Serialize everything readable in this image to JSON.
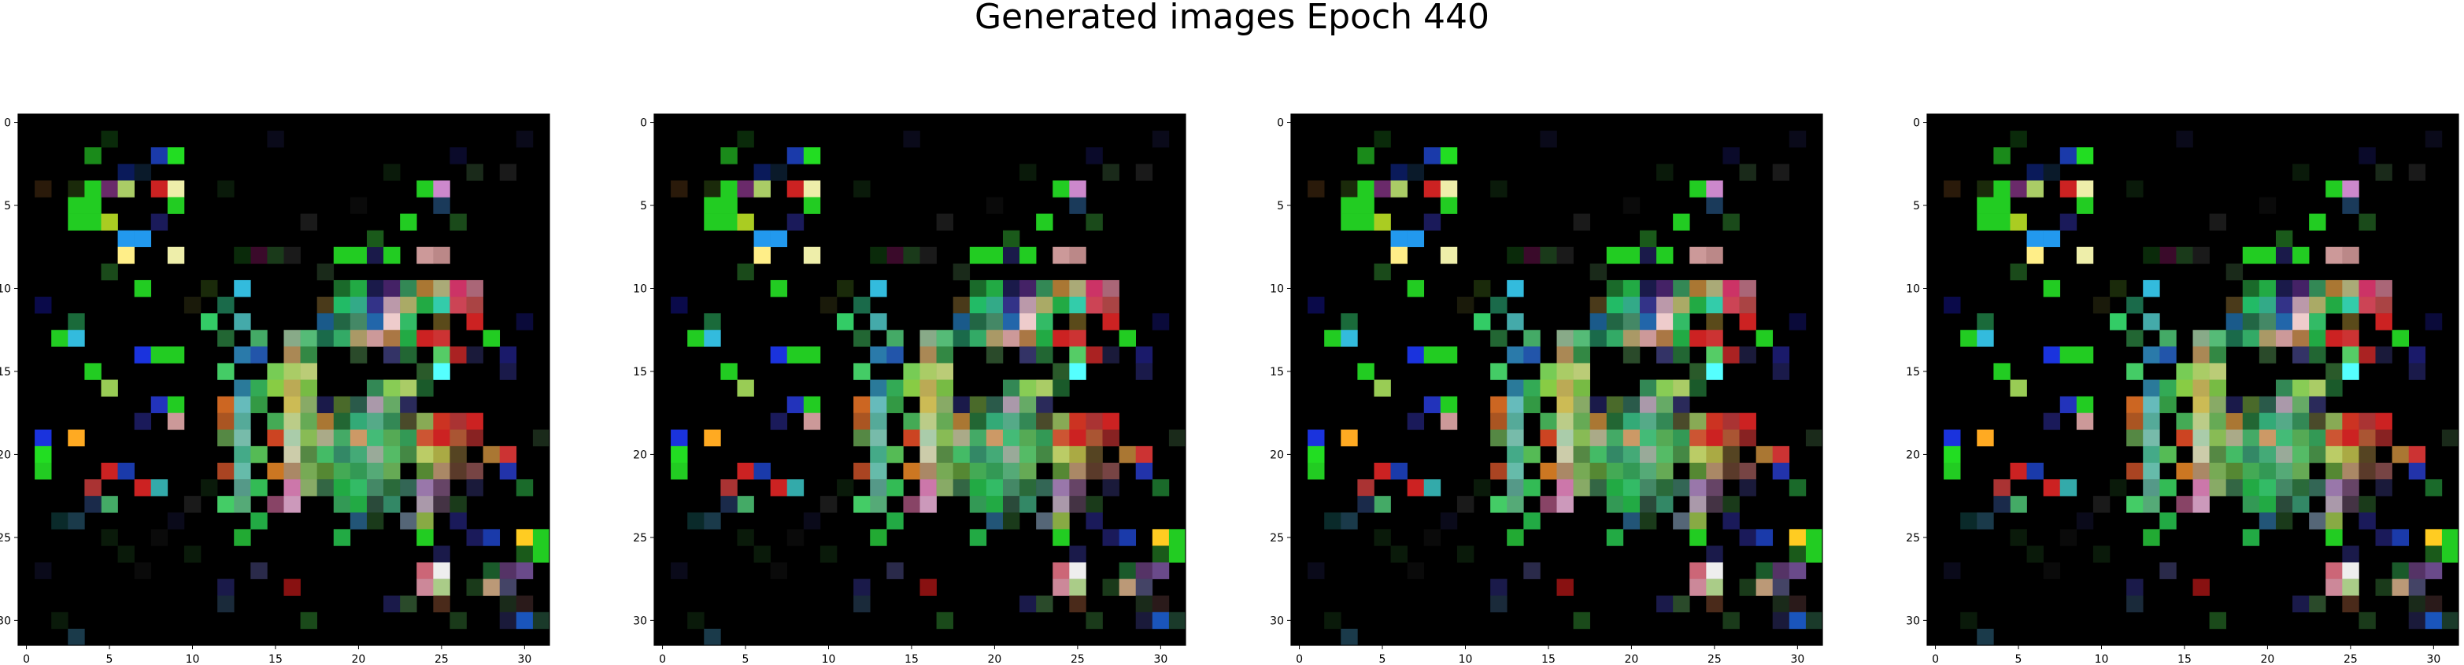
{
  "title": "Generated images Epoch 440",
  "chart_data": [
    {
      "type": "heatmap",
      "x_ticks": [
        0,
        5,
        10,
        15,
        20,
        25,
        30
      ],
      "y_ticks": [
        0,
        5,
        10,
        15,
        20,
        25,
        30
      ],
      "xlim": [
        -0.5,
        31.5
      ],
      "ylim": [
        31.5,
        -0.5
      ],
      "grid": false
    },
    {
      "type": "heatmap",
      "x_ticks": [
        0,
        5,
        10,
        15,
        20,
        25,
        30
      ],
      "y_ticks": [
        0,
        5,
        10,
        15,
        20,
        25,
        30
      ],
      "xlim": [
        -0.5,
        31.5
      ],
      "ylim": [
        31.5,
        -0.5
      ],
      "grid": false
    },
    {
      "type": "heatmap",
      "x_ticks": [
        0,
        5,
        10,
        15,
        20,
        25,
        30
      ],
      "y_ticks": [
        0,
        5,
        10,
        15,
        20,
        25,
        30
      ],
      "xlim": [
        -0.5,
        31.5
      ],
      "ylim": [
        31.5,
        -0.5
      ],
      "grid": false
    },
    {
      "type": "heatmap",
      "x_ticks": [
        0,
        5,
        10,
        15,
        20,
        25,
        30
      ],
      "y_ticks": [
        0,
        5,
        10,
        15,
        20,
        25,
        30
      ],
      "xlim": [
        -0.5,
        31.5
      ],
      "ylim": [
        31.5,
        -0.5
      ],
      "grid": false
    }
  ],
  "image_pixels": {
    "background": "#000000",
    "cells": [
      [
        5,
        1,
        "#0a2a0a"
      ],
      [
        4,
        2,
        "#1a8a1a"
      ],
      [
        6,
        3,
        "#0a1a5a"
      ],
      [
        8,
        2,
        "#1a3aaa"
      ],
      [
        9,
        2,
        "#22dd22"
      ],
      [
        7,
        3,
        "#0a1a2a"
      ],
      [
        1,
        4,
        "#2a1a0a"
      ],
      [
        3,
        4,
        "#1a2a0a"
      ],
      [
        4,
        4,
        "#22cc22"
      ],
      [
        5,
        4,
        "#6a2a6a"
      ],
      [
        6,
        4,
        "#aacc66"
      ],
      [
        8,
        4,
        "#cc2222"
      ],
      [
        9,
        4,
        "#eeeeaa"
      ],
      [
        3,
        5,
        "#22cc22"
      ],
      [
        4,
        5,
        "#22cc22"
      ],
      [
        9,
        5,
        "#22cc22"
      ],
      [
        3,
        6,
        "#22cc22"
      ],
      [
        4,
        6,
        "#22cc22"
      ],
      [
        5,
        6,
        "#aacc22"
      ],
      [
        8,
        6,
        "#1a1a5a"
      ],
      [
        6,
        7,
        "#2299ee"
      ],
      [
        7,
        7,
        "#2299ee"
      ],
      [
        6,
        8,
        "#ffee88"
      ],
      [
        9,
        8,
        "#eeeeaa"
      ],
      [
        5,
        9,
        "#1a4a1a"
      ],
      [
        7,
        10,
        "#22cc22"
      ],
      [
        1,
        11,
        "#0a0a4a"
      ],
      [
        3,
        12,
        "#1a6a3a"
      ],
      [
        2,
        13,
        "#22cc22"
      ],
      [
        3,
        13,
        "#33bbdd"
      ],
      [
        7,
        14,
        "#1a33dd"
      ],
      [
        8,
        14,
        "#22cc22"
      ],
      [
        9,
        14,
        "#22cc22"
      ],
      [
        4,
        15,
        "#22cc22"
      ],
      [
        5,
        16,
        "#99cc55"
      ],
      [
        8,
        17,
        "#2233bb"
      ],
      [
        9,
        17,
        "#22cc22"
      ],
      [
        7,
        18,
        "#1a1a5a"
      ],
      [
        9,
        18,
        "#cc9999"
      ],
      [
        3,
        19,
        "#ffaa22"
      ],
      [
        1,
        19,
        "#1a33dd"
      ],
      [
        1,
        20,
        "#22dd22"
      ],
      [
        1,
        21,
        "#22cc22"
      ],
      [
        5,
        21,
        "#cc2222"
      ],
      [
        6,
        21,
        "#1a3aaa"
      ],
      [
        4,
        22,
        "#aa3333"
      ],
      [
        7,
        22,
        "#cc2222"
      ],
      [
        8,
        22,
        "#33aaaa"
      ],
      [
        5,
        23,
        "#44aa66"
      ],
      [
        4,
        23,
        "#1a2a4a"
      ],
      [
        2,
        24,
        "#0a2a2a"
      ],
      [
        3,
        24,
        "#1a3a4a"
      ],
      [
        13,
        10,
        "#33bbdd"
      ],
      [
        12,
        11,
        "#1a6a4a"
      ],
      [
        11,
        12,
        "#33cc66"
      ],
      [
        13,
        12,
        "#44aaaa"
      ],
      [
        14,
        13,
        "#44aa66"
      ],
      [
        12,
        13,
        "#226633"
      ],
      [
        16,
        13,
        "#88aa88"
      ],
      [
        17,
        13,
        "#55bb77"
      ],
      [
        13,
        14,
        "#2a7aaa"
      ],
      [
        14,
        14,
        "#2255aa"
      ],
      [
        16,
        14,
        "#aa8855"
      ],
      [
        17,
        14,
        "#338844"
      ],
      [
        12,
        15,
        "#44cc66"
      ],
      [
        15,
        15,
        "#77cc55"
      ],
      [
        16,
        15,
        "#aacc66"
      ],
      [
        17,
        15,
        "#bbcc77"
      ],
      [
        13,
        16,
        "#2a7a9a"
      ],
      [
        14,
        16,
        "#33aa55"
      ],
      [
        15,
        16,
        "#88cc44"
      ],
      [
        16,
        16,
        "#bbaa55"
      ],
      [
        17,
        16,
        "#77bb44"
      ],
      [
        12,
        17,
        "#cc6622"
      ],
      [
        13,
        17,
        "#66bbbb"
      ],
      [
        14,
        17,
        "#339944"
      ],
      [
        16,
        17,
        "#ccbb55"
      ],
      [
        17,
        17,
        "#88aa66"
      ],
      [
        12,
        18,
        "#aa5522"
      ],
      [
        13,
        18,
        "#55aa99"
      ],
      [
        15,
        18,
        "#44aa55"
      ],
      [
        16,
        18,
        "#bbcc88"
      ],
      [
        17,
        18,
        "#66aa55"
      ],
      [
        18,
        18,
        "#aa7733"
      ],
      [
        12,
        19,
        "#558844"
      ],
      [
        13,
        19,
        "#77bbaa"
      ],
      [
        15,
        19,
        "#cc4422"
      ],
      [
        16,
        19,
        "#aaccaa"
      ],
      [
        17,
        19,
        "#88bb55"
      ],
      [
        13,
        20,
        "#44aa88"
      ],
      [
        14,
        20,
        "#55bb55"
      ],
      [
        16,
        20,
        "#ccccaa"
      ],
      [
        17,
        20,
        "#558844"
      ],
      [
        12,
        21,
        "#aa4422"
      ],
      [
        13,
        21,
        "#66bbaa"
      ],
      [
        15,
        21,
        "#cc7722"
      ],
      [
        16,
        21,
        "#aa8866"
      ],
      [
        17,
        21,
        "#77aa55"
      ],
      [
        13,
        22,
        "#559988"
      ],
      [
        14,
        22,
        "#33bb55"
      ],
      [
        16,
        22,
        "#cc77aa"
      ],
      [
        17,
        22,
        "#88aa66"
      ],
      [
        12,
        23,
        "#44cc66"
      ],
      [
        13,
        23,
        "#55aa77"
      ],
      [
        15,
        23,
        "#884466"
      ],
      [
        16,
        23,
        "#cc99bb"
      ],
      [
        14,
        24,
        "#22aa44"
      ],
      [
        13,
        25,
        "#22aa33"
      ],
      [
        18,
        9,
        "#1a2a1a"
      ],
      [
        19,
        8,
        "#22cc22"
      ],
      [
        20,
        8,
        "#22cc22"
      ],
      [
        21,
        8,
        "#1a1a4a"
      ],
      [
        22,
        8,
        "#22cc22"
      ],
      [
        24,
        8,
        "#cc9999"
      ],
      [
        25,
        8,
        "#bb8888"
      ],
      [
        21,
        7,
        "#1a5a1a"
      ],
      [
        23,
        6,
        "#22cc22"
      ],
      [
        25,
        5,
        "#1a3a5a"
      ],
      [
        26,
        6,
        "#1a4a1a"
      ],
      [
        24,
        4,
        "#22cc22"
      ],
      [
        25,
        4,
        "#cc88cc"
      ],
      [
        19,
        10,
        "#1a6a2a"
      ],
      [
        20,
        10,
        "#22aa44"
      ],
      [
        21,
        10,
        "#1a1a4a"
      ],
      [
        22,
        10,
        "#442266"
      ],
      [
        23,
        10,
        "#338855"
      ],
      [
        24,
        10,
        "#aa7733"
      ],
      [
        25,
        10,
        "#aaaa77"
      ],
      [
        26,
        10,
        "#cc3366"
      ],
      [
        27,
        10,
        "#aa6677"
      ],
      [
        18,
        11,
        "#4a3a1a"
      ],
      [
        19,
        11,
        "#22bb66"
      ],
      [
        20,
        11,
        "#33aa88"
      ],
      [
        21,
        11,
        "#333388"
      ],
      [
        22,
        11,
        "#bb99aa"
      ],
      [
        23,
        11,
        "#aaaa66"
      ],
      [
        24,
        11,
        "#22aa44"
      ],
      [
        25,
        11,
        "#33ccaa"
      ],
      [
        26,
        11,
        "#cc4455"
      ],
      [
        27,
        11,
        "#aa4444"
      ],
      [
        18,
        12,
        "#1a5a8a"
      ],
      [
        19,
        12,
        "#226644"
      ],
      [
        20,
        12,
        "#448866"
      ],
      [
        21,
        12,
        "#2266aa"
      ],
      [
        22,
        12,
        "#eecccc"
      ],
      [
        23,
        12,
        "#33bb66"
      ],
      [
        25,
        12,
        "#5a4a1a"
      ],
      [
        27,
        12,
        "#cc2222"
      ],
      [
        18,
        13,
        "#1a6a4a"
      ],
      [
        19,
        13,
        "#33aa66"
      ],
      [
        20,
        13,
        "#aa9966"
      ],
      [
        21,
        13,
        "#cc9999"
      ],
      [
        22,
        13,
        "#aa7744"
      ],
      [
        23,
        13,
        "#22aa44"
      ],
      [
        24,
        13,
        "#cc2222"
      ],
      [
        25,
        13,
        "#cc3333"
      ],
      [
        28,
        13,
        "#22cc22"
      ],
      [
        20,
        14,
        "#2a4a2a"
      ],
      [
        22,
        14,
        "#333366"
      ],
      [
        23,
        14,
        "#226633"
      ],
      [
        25,
        14,
        "#55cc66"
      ],
      [
        26,
        14,
        "#aa2222"
      ],
      [
        24,
        15,
        "#2a5a2a"
      ],
      [
        25,
        15,
        "#55ffff"
      ],
      [
        21,
        16,
        "#338855"
      ],
      [
        22,
        16,
        "#88cc55"
      ],
      [
        23,
        16,
        "#aacc66"
      ],
      [
        24,
        16,
        "#1a5a2a"
      ],
      [
        18,
        17,
        "#1a1a4a"
      ],
      [
        19,
        17,
        "#4a6a2a"
      ],
      [
        20,
        17,
        "#2a5a4a"
      ],
      [
        21,
        17,
        "#aa99aa"
      ],
      [
        22,
        17,
        "#66aa66"
      ],
      [
        23,
        17,
        "#2a2a5a"
      ],
      [
        19,
        18,
        "#226633"
      ],
      [
        20,
        18,
        "#33aa77"
      ],
      [
        21,
        18,
        "#55aa88"
      ],
      [
        22,
        18,
        "#338855"
      ],
      [
        23,
        18,
        "#4a4a2a"
      ],
      [
        24,
        18,
        "#88aa55"
      ],
      [
        25,
        18,
        "#cc3322"
      ],
      [
        26,
        18,
        "#aa3333"
      ],
      [
        27,
        18,
        "#cc2222"
      ],
      [
        18,
        19,
        "#aaaa88"
      ],
      [
        19,
        19,
        "#44aa66"
      ],
      [
        20,
        19,
        "#cc9966"
      ],
      [
        21,
        19,
        "#44bb77"
      ],
      [
        22,
        19,
        "#55aa55"
      ],
      [
        23,
        19,
        "#339955"
      ],
      [
        24,
        19,
        "#cc5533"
      ],
      [
        25,
        19,
        "#cc2222"
      ],
      [
        26,
        19,
        "#aa5533"
      ],
      [
        27,
        19,
        "#882222"
      ],
      [
        18,
        20,
        "#44bb66"
      ],
      [
        19,
        20,
        "#338866"
      ],
      [
        20,
        20,
        "#44aa77"
      ],
      [
        21,
        20,
        "#99aa99"
      ],
      [
        22,
        20,
        "#55bb66"
      ],
      [
        23,
        20,
        "#448844"
      ],
      [
        24,
        20,
        "#bbcc66"
      ],
      [
        25,
        20,
        "#aaaa44"
      ],
      [
        26,
        20,
        "#554422"
      ],
      [
        28,
        20,
        "#aa7733"
      ],
      [
        29,
        20,
        "#cc3333"
      ],
      [
        18,
        21,
        "#558833"
      ],
      [
        19,
        21,
        "#44aa55"
      ],
      [
        20,
        21,
        "#339955"
      ],
      [
        21,
        21,
        "#55aa77"
      ],
      [
        22,
        21,
        "#66aa55"
      ],
      [
        24,
        21,
        "#558833"
      ],
      [
        25,
        21,
        "#aa8866"
      ],
      [
        26,
        21,
        "#5a3a2a"
      ],
      [
        27,
        21,
        "#774444"
      ],
      [
        29,
        21,
        "#2233aa"
      ],
      [
        18,
        22,
        "#336644"
      ],
      [
        19,
        22,
        "#22aa44"
      ],
      [
        20,
        22,
        "#33bb66"
      ],
      [
        21,
        22,
        "#448866"
      ],
      [
        22,
        22,
        "#2a6a3a"
      ],
      [
        23,
        22,
        "#336655"
      ],
      [
        24,
        22,
        "#9977aa"
      ],
      [
        25,
        22,
        "#664466"
      ],
      [
        27,
        22,
        "#1a1a3a"
      ],
      [
        30,
        22,
        "#1a6a2a"
      ],
      [
        19,
        23,
        "#339955"
      ],
      [
        20,
        23,
        "#22aa44"
      ],
      [
        21,
        23,
        "#2a4a3a"
      ],
      [
        22,
        23,
        "#338866"
      ],
      [
        24,
        23,
        "#aa99aa"
      ],
      [
        25,
        23,
        "#443344"
      ],
      [
        26,
        23,
        "#1a3a1a"
      ],
      [
        20,
        24,
        "#225577"
      ],
      [
        21,
        24,
        "#1a3a1a"
      ],
      [
        23,
        24,
        "#556677"
      ],
      [
        24,
        24,
        "#88aa44"
      ],
      [
        26,
        24,
        "#1a1a5a"
      ],
      [
        19,
        25,
        "#22aa44"
      ],
      [
        24,
        25,
        "#22cc22"
      ],
      [
        27,
        25,
        "#1a1a5a"
      ],
      [
        28,
        25,
        "#1a3aaa"
      ],
      [
        30,
        25,
        "#ffcc22"
      ],
      [
        31,
        25,
        "#22cc22"
      ],
      [
        25,
        26,
        "#1a1a4a"
      ],
      [
        30,
        26,
        "#1a5a1a"
      ],
      [
        31,
        26,
        "#22cc22"
      ],
      [
        24,
        27,
        "#cc6677"
      ],
      [
        25,
        27,
        "#eeeeee"
      ],
      [
        28,
        27,
        "#1a5a2a"
      ],
      [
        29,
        27,
        "#553366"
      ],
      [
        30,
        27,
        "#6a4a8a"
      ],
      [
        24,
        28,
        "#cc8899"
      ],
      [
        25,
        28,
        "#aacc88"
      ],
      [
        27,
        28,
        "#1a3a1a"
      ],
      [
        28,
        28,
        "#bb9977"
      ],
      [
        29,
        28,
        "#444466"
      ],
      [
        22,
        29,
        "#1a1a4a"
      ],
      [
        23,
        29,
        "#2a4a2a"
      ],
      [
        25,
        29,
        "#4a2a1a"
      ],
      [
        29,
        29,
        "#1a2a1a"
      ],
      [
        30,
        29,
        "#2a1a1a"
      ],
      [
        26,
        30,
        "#1a3a1a"
      ],
      [
        29,
        30,
        "#1a1a3a"
      ],
      [
        30,
        30,
        "#1a55bb"
      ],
      [
        31,
        30,
        "#1a3a2a"
      ],
      [
        14,
        27,
        "#2a2a4a"
      ],
      [
        16,
        28,
        "#881111"
      ],
      [
        12,
        28,
        "#1a1a4a"
      ],
      [
        12,
        29,
        "#1a2a3a"
      ],
      [
        17,
        30,
        "#1a4a1a"
      ],
      [
        2,
        30,
        "#0a1a0a"
      ],
      [
        3,
        31,
        "#1a3a4a"
      ],
      [
        1,
        27,
        "#0a0a1a"
      ],
      [
        5,
        25,
        "#0a1a0a"
      ],
      [
        10,
        26,
        "#0a1a0a"
      ],
      [
        27,
        14,
        "#1a1a3a"
      ],
      [
        29,
        14,
        "#1a1a6a"
      ],
      [
        29,
        15,
        "#1a1a4a"
      ],
      [
        30,
        12,
        "#0a0a3a"
      ],
      [
        31,
        19,
        "#1a2a1a"
      ],
      [
        26,
        2,
        "#0a0a2a"
      ],
      [
        27,
        3,
        "#1a2a1a"
      ],
      [
        29,
        3,
        "#1a1a1a"
      ],
      [
        30,
        1,
        "#0a0a1a"
      ],
      [
        22,
        3,
        "#0a1a0a"
      ],
      [
        15,
        1,
        "#0a0a1a"
      ],
      [
        12,
        4,
        "#0a1a0a"
      ],
      [
        17,
        6,
        "#1a1a1a"
      ],
      [
        20,
        5,
        "#0a0a0a"
      ],
      [
        14,
        8,
        "#3a0a2a"
      ],
      [
        15,
        8,
        "#1a3a1a"
      ],
      [
        16,
        8,
        "#1a1a1a"
      ],
      [
        13,
        8,
        "#0a2a0a"
      ],
      [
        11,
        10,
        "#1a2a0a"
      ],
      [
        10,
        11,
        "#1a1a0a"
      ],
      [
        11,
        22,
        "#0a1a0a"
      ],
      [
        10,
        23,
        "#1a1a1a"
      ],
      [
        9,
        24,
        "#0a0a1a"
      ],
      [
        8,
        25,
        "#0a0a0a"
      ],
      [
        6,
        26,
        "#0a1a0a"
      ],
      [
        7,
        27,
        "#0a0a0a"
      ]
    ]
  },
  "colors": {
    "axis": "#000000",
    "background": "#ffffff"
  }
}
